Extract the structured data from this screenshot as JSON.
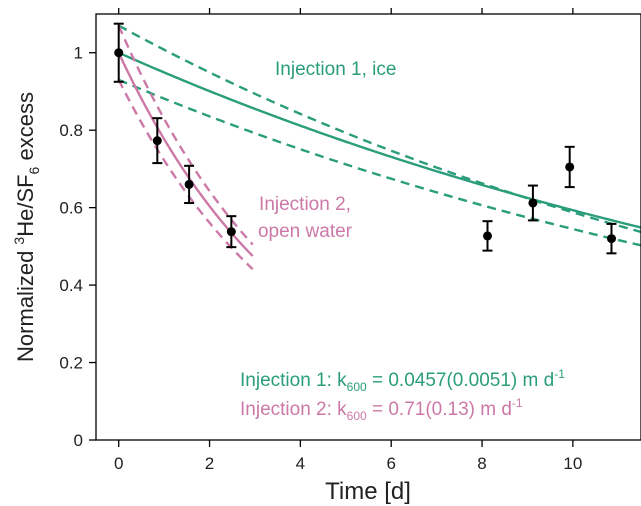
{
  "chart_data": {
    "type": "scatter",
    "xlabel": "Time [d]",
    "ylabel": {
      "prefix": "Normalized ",
      "sup": "3",
      "mid": "He/SF",
      "sub": "6",
      "suffix": " excess"
    },
    "xlim": [
      -0.5,
      11.5
    ],
    "ylim": [
      0,
      1.1
    ],
    "x_ticks": [
      0,
      2,
      4,
      6,
      8,
      10
    ],
    "y_ticks": [
      0,
      0.2,
      0.4,
      0.6,
      0.8,
      1
    ],
    "x_tick_labels": [
      "0",
      "2",
      "4",
      "6",
      "8",
      "10"
    ],
    "y_tick_labels": [
      "0",
      "0.2",
      "0.4",
      "0.6",
      "0.8",
      "1"
    ],
    "grid": false,
    "colors": {
      "ice": "#2a9d7a",
      "open": "#cc79a7",
      "points": "#000000"
    },
    "observations": [
      {
        "x": 0.0,
        "y": 1.0,
        "err": 0.075
      },
      {
        "x": 0.85,
        "y": 0.773,
        "err": 0.058
      },
      {
        "x": 1.55,
        "y": 0.66,
        "err": 0.048
      },
      {
        "x": 2.48,
        "y": 0.538,
        "err": 0.04
      },
      {
        "x": 8.12,
        "y": 0.527,
        "err": 0.038
      },
      {
        "x": 9.12,
        "y": 0.612,
        "err": 0.045
      },
      {
        "x": 9.93,
        "y": 0.705,
        "err": 0.052
      },
      {
        "x": 10.85,
        "y": 0.52,
        "err": 0.038
      }
    ],
    "fits": [
      {
        "name": "Injection 1, ice",
        "color_key": "ice",
        "x_range": [
          0,
          11.5
        ],
        "fit": {
          "y0": 1.0,
          "k": 0.0522
        },
        "lower": {
          "y0": 0.93,
          "k": 0.0535
        },
        "upper": {
          "y0": 1.07,
          "k": 0.0599
        }
      },
      {
        "name": "Injection 2, open water",
        "color_key": "open",
        "x_range": [
          0,
          2.95
        ],
        "fit": {
          "y0": 1.0,
          "k": 0.2523
        },
        "lower": {
          "y0": 0.93,
          "k": 0.2528
        },
        "upper": {
          "y0": 1.07,
          "k": 0.2547
        }
      }
    ],
    "annotations": {
      "ice_label": "Injection 1, ice",
      "open_label_line1": "Injection 2,",
      "open_label_line2": "open water",
      "eq1": {
        "prefix": "Injection 1: k",
        "sub": "600",
        "mid": " = 0.0457(0.0051) m d",
        "sup": "-1"
      },
      "eq2": {
        "prefix": "Injection 2: k",
        "sub": "600",
        "mid": " = 0.71(0.13) m d",
        "sup": "-1"
      }
    }
  }
}
